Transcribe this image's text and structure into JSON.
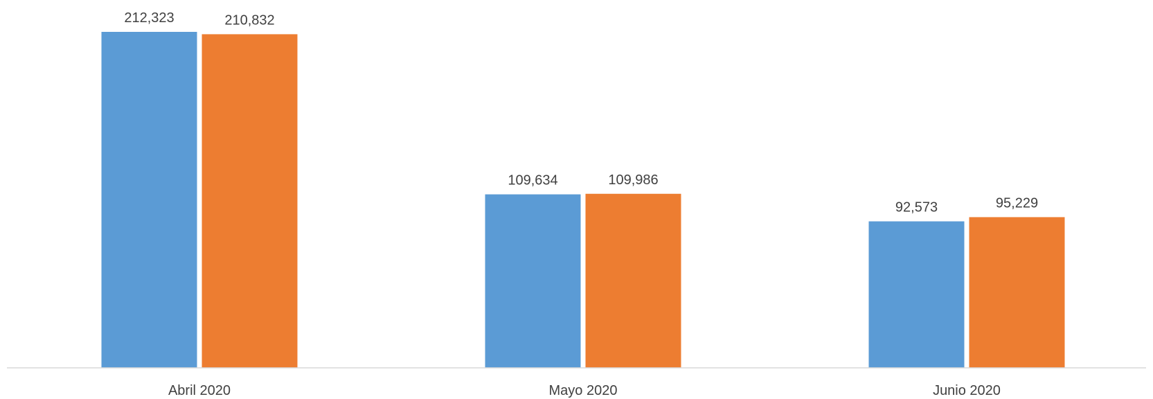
{
  "chart_data": {
    "type": "bar",
    "title": "",
    "xlabel": "",
    "ylabel": "",
    "categories": [
      "Abril 2020",
      "Mayo 2020",
      "Junio 2020"
    ],
    "series": [
      {
        "values": [
          212323,
          109634,
          92573
        ],
        "labels": [
          "212,323",
          "109,634",
          "92,573"
        ],
        "color": "#5B9BD5"
      },
      {
        "values": [
          210832,
          109986,
          95229
        ],
        "labels": [
          "210,832",
          "109,986",
          "95,229"
        ],
        "color": "#ED7D31"
      }
    ],
    "ylim": [
      0,
      212323
    ],
    "grid": false,
    "legend": "none",
    "axis_color": "#D9D9D9"
  }
}
